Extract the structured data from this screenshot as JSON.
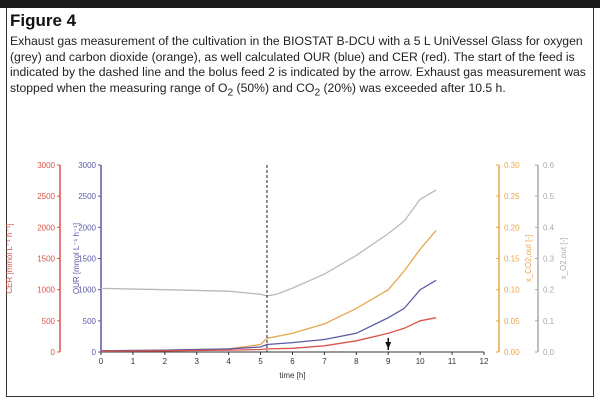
{
  "figure": {
    "title": "Figure 4",
    "caption_parts": [
      "Exhaust gas measurement of the cultivation in the BIOSTAT B-DCU with a 5 L UniVessel Glass for oxygen (grey) and carbon dioxide (orange), as well calculated OUR (blue) and CER (red). The start of the feed is indicated by the dashed line and the bolus feed 2 is indicated by the arrow. Exhaust gas measurement was stopped when the measuring range of O",
      "2",
      " (50%) and CO",
      "2",
      " (20%) was exceeded after 10.5 h."
    ]
  },
  "colors": {
    "cer": "#d9544a",
    "our": "#5a5aa8",
    "o2": "#b9b9b9",
    "co2": "#e8a64a"
  },
  "chart_data": {
    "type": "line",
    "xlabel": "time [h]",
    "xlim": [
      0,
      12
    ],
    "xticks": [
      "0",
      "1",
      "2",
      "3",
      "4",
      "5",
      "6",
      "7",
      "8",
      "9",
      "10",
      "11",
      "12"
    ],
    "axes": {
      "cer": {
        "label": "CER [mmol L⁻¹ h⁻¹]",
        "lim": [
          0,
          3000
        ],
        "ticks": [
          "0",
          "500",
          "1000",
          "1500",
          "2000",
          "2500",
          "3000"
        ]
      },
      "our": {
        "label": "OUR [mmol L⁻¹ h⁻¹]",
        "lim": [
          0,
          3000
        ],
        "ticks": [
          "0",
          "500",
          "1000",
          "1500",
          "2000",
          "2500",
          "3000"
        ]
      },
      "co2": {
        "label": "x_CO2,out [-]",
        "lim": [
          0,
          0.3
        ],
        "ticks": [
          "0.00",
          "0.05",
          "0.10",
          "0.15",
          "0.20",
          "0.25",
          "0.30"
        ]
      },
      "o2": {
        "label": "x_O2,out [-]",
        "lim": [
          0,
          0.6
        ],
        "ticks": [
          "0.0",
          "0.1",
          "0.2",
          "0.3",
          "0.4",
          "0.5",
          "0.6"
        ]
      }
    },
    "annotations": {
      "feed_start_h": 5.2,
      "bolus_feed_2_h": 9
    },
    "series": [
      {
        "name": "O2 (grey)",
        "axis": "o2",
        "x": [
          0,
          2,
          4,
          5,
          5.2,
          5.5,
          6,
          7,
          8,
          9,
          9.5,
          10,
          10.5
        ],
        "y": [
          0.204,
          0.2,
          0.195,
          0.185,
          0.18,
          0.185,
          0.205,
          0.25,
          0.31,
          0.38,
          0.42,
          0.49,
          0.52
        ]
      },
      {
        "name": "CO2 (orange)",
        "axis": "co2",
        "x": [
          0,
          2,
          4,
          5,
          5.2,
          6,
          7,
          8,
          9,
          9.5,
          10,
          10.5
        ],
        "y": [
          0.002,
          0.003,
          0.005,
          0.012,
          0.022,
          0.03,
          0.045,
          0.07,
          0.1,
          0.13,
          0.165,
          0.195
        ]
      },
      {
        "name": "OUR (blue)",
        "axis": "our",
        "x": [
          0,
          2,
          4,
          5,
          5.2,
          6,
          7,
          8,
          9,
          9.5,
          10,
          10.5
        ],
        "y": [
          20,
          30,
          50,
          80,
          120,
          150,
          200,
          300,
          550,
          700,
          1000,
          1150
        ]
      },
      {
        "name": "CER (red)",
        "axis": "cer",
        "x": [
          0,
          2,
          4,
          5,
          5.2,
          6,
          7,
          8,
          9,
          9.5,
          10,
          10.5
        ],
        "y": [
          10,
          20,
          30,
          40,
          50,
          60,
          100,
          180,
          300,
          380,
          500,
          550
        ]
      }
    ]
  }
}
